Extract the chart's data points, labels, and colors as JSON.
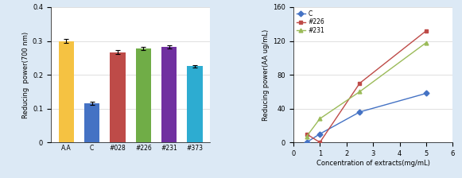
{
  "bar": {
    "categories": [
      "A.A",
      "C",
      "#028",
      "#226",
      "#231",
      "#373"
    ],
    "values": [
      0.3,
      0.116,
      0.267,
      0.277,
      0.282,
      0.225
    ],
    "errors": [
      0.005,
      0.005,
      0.005,
      0.005,
      0.004,
      0.004
    ],
    "colors": [
      "#f5c242",
      "#4472c4",
      "#be4b48",
      "#70ad47",
      "#7030a0",
      "#2dacd1"
    ],
    "ylabel": "Reducing  power(700 nm)",
    "ylim": [
      0,
      0.4
    ],
    "yticks": [
      0,
      0.1,
      0.2,
      0.3,
      0.4
    ]
  },
  "line": {
    "x": [
      0.5,
      1.0,
      2.5,
      5.0
    ],
    "series": [
      {
        "label": "C",
        "color": "#4472c4",
        "marker": "D",
        "values": [
          0,
          10,
          36,
          58
        ]
      },
      {
        "label": "#226",
        "color": "#be4b48",
        "marker": "s",
        "values": [
          10,
          0,
          70,
          132
        ]
      },
      {
        "label": "#231",
        "color": "#9bbb59",
        "marker": "^",
        "values": [
          7,
          28,
          60,
          118
        ]
      }
    ],
    "xlabel": "Concentration of extracts(mg/mL)",
    "ylabel": "Reducing power(AA ug/mL)",
    "xlim": [
      0,
      6
    ],
    "ylim": [
      0,
      160
    ],
    "yticks": [
      0,
      40,
      80,
      120,
      160
    ],
    "xticks": [
      0,
      1,
      2,
      3,
      4,
      5,
      6
    ]
  },
  "background_color": "#dce9f5"
}
